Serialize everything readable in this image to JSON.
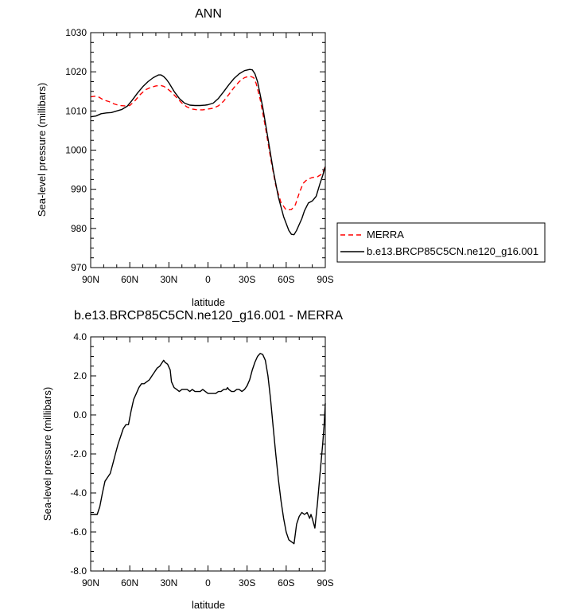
{
  "chart_data": [
    {
      "type": "line",
      "title": "ANN",
      "xlabel": "latitude",
      "ylabel": "Sea-level pressure (millibars)",
      "xlim": [
        90,
        -90
      ],
      "ylim": [
        970,
        1030
      ],
      "x_ticks": [
        90,
        60,
        30,
        0,
        -30,
        -60,
        -90
      ],
      "x_tick_labels": [
        "90N",
        "60N",
        "30N",
        "0",
        "30S",
        "60S",
        "90S"
      ],
      "y_ticks": [
        970,
        980,
        990,
        1000,
        1010,
        1020,
        1030
      ],
      "y_tick_labels": [
        "970",
        "980",
        "990",
        "1000",
        "1010",
        "1020",
        "1030"
      ],
      "legend_position": "right, outside plot",
      "series": [
        {
          "name": "MERRA",
          "color": "#ff0000",
          "dash": true,
          "x": [
            90,
            86,
            84,
            80,
            76,
            72,
            68,
            64,
            60,
            56,
            52,
            48,
            44,
            40,
            36,
            34,
            32,
            28,
            24,
            20,
            16,
            12,
            8,
            4,
            0,
            -4,
            -8,
            -12,
            -16,
            -20,
            -24,
            -28,
            -32,
            -35,
            -37,
            -40,
            -44,
            -48,
            -52,
            -56,
            -60,
            -64,
            -67,
            -70,
            -73,
            -76,
            -80,
            -84,
            -88,
            -90
          ],
          "y": [
            1013.6,
            1013.8,
            1013.6,
            1012.8,
            1012.4,
            1011.8,
            1011.4,
            1011.3,
            1011.4,
            1012.6,
            1014.2,
            1015.4,
            1016.0,
            1016.4,
            1016.5,
            1016.3,
            1015.9,
            1014.8,
            1013.4,
            1012.0,
            1011.0,
            1010.5,
            1010.3,
            1010.3,
            1010.5,
            1010.7,
            1011.3,
            1012.5,
            1014.2,
            1016.0,
            1017.5,
            1018.5,
            1018.9,
            1018.5,
            1017.0,
            1013.0,
            1006.0,
            998.0,
            991.0,
            986.6,
            984.7,
            984.8,
            986.0,
            989.0,
            991.5,
            992.5,
            993.0,
            993.2,
            994.0,
            996.0
          ]
        },
        {
          "name": "b.e13.BRCP85C5CN.ne120_g16.001",
          "color": "#000000",
          "dash": false,
          "x": [
            90,
            86,
            82,
            78,
            74,
            70,
            66,
            62,
            58,
            54,
            50,
            46,
            42,
            38,
            36,
            34,
            32,
            30,
            26,
            22,
            18,
            14,
            10,
            6,
            2,
            0,
            -4,
            -8,
            -12,
            -16,
            -20,
            -24,
            -28,
            -32,
            -34,
            -36,
            -38,
            -42,
            -46,
            -50,
            -54,
            -58,
            -62,
            -64,
            -66,
            -68,
            -70,
            -72,
            -74,
            -77,
            -80,
            -83,
            -86,
            -88,
            -90
          ],
          "y": [
            1008.5,
            1008.7,
            1009.3,
            1009.5,
            1009.6,
            1010.0,
            1010.4,
            1011.2,
            1012.8,
            1014.6,
            1016.2,
            1017.5,
            1018.5,
            1019.2,
            1019.2,
            1018.8,
            1018.1,
            1017.2,
            1015.0,
            1013.2,
            1012.0,
            1011.5,
            1011.4,
            1011.4,
            1011.5,
            1011.6,
            1012.0,
            1013.2,
            1014.9,
            1016.7,
            1018.3,
            1019.5,
            1020.3,
            1020.6,
            1020.5,
            1019.5,
            1017.5,
            1011.0,
            1003.0,
            995.0,
            988.0,
            983.0,
            979.5,
            978.5,
            978.4,
            979.5,
            981.0,
            982.5,
            984.5,
            986.5,
            987.0,
            988.2,
            991.5,
            993.5,
            995.8
          ]
        }
      ]
    },
    {
      "type": "line",
      "title": "b.e13.BRCP85C5CN.ne120_g16.001 - MERRA",
      "xlabel": "latitude",
      "ylabel": "Sea-level pressure (millibars)",
      "xlim": [
        90,
        -90
      ],
      "ylim": [
        -8,
        4
      ],
      "x_ticks": [
        90,
        60,
        30,
        0,
        -30,
        -60,
        -90
      ],
      "x_tick_labels": [
        "90N",
        "60N",
        "30N",
        "0",
        "30S",
        "60S",
        "90S"
      ],
      "y_ticks": [
        -8,
        -6,
        -4,
        -2,
        0,
        2,
        4
      ],
      "y_tick_labels": [
        "-8.0",
        "-6.0",
        "-4.0",
        "-2.0",
        "0.0",
        "2.0",
        "4.0"
      ],
      "series": [
        {
          "color": "#000000",
          "dash": false,
          "x": [
            90,
            87,
            85,
            83,
            81,
            79,
            77,
            75,
            73,
            71,
            69,
            67,
            65,
            63,
            61,
            59,
            57,
            55,
            53,
            51,
            49,
            47,
            45,
            43,
            41,
            39,
            37,
            35,
            34,
            33,
            31,
            29,
            28,
            26,
            24,
            22,
            20,
            18,
            16,
            14,
            12,
            10,
            8,
            6,
            4,
            2,
            0,
            -2,
            -4,
            -6,
            -8,
            -10,
            -12,
            -14,
            -15,
            -16,
            -18,
            -20,
            -22,
            -24,
            -26,
            -28,
            -30,
            -32,
            -34,
            -36,
            -38,
            -40,
            -42,
            -44,
            -46,
            -48,
            -50,
            -52,
            -54,
            -56,
            -58,
            -60,
            -62,
            -64,
            -66,
            -67,
            -68,
            -70,
            -72,
            -74,
            -76,
            -78,
            -79,
            -80,
            -82,
            -84,
            -86,
            -88,
            -89,
            -90
          ],
          "y": [
            -5.1,
            -5.1,
            -5.1,
            -4.7,
            -4.0,
            -3.4,
            -3.2,
            -3.0,
            -2.5,
            -2.0,
            -1.5,
            -1.1,
            -0.7,
            -0.5,
            -0.5,
            0.2,
            0.8,
            1.1,
            1.4,
            1.6,
            1.6,
            1.7,
            1.8,
            2.0,
            2.2,
            2.4,
            2.5,
            2.7,
            2.8,
            2.7,
            2.6,
            2.3,
            1.7,
            1.4,
            1.3,
            1.2,
            1.3,
            1.3,
            1.3,
            1.2,
            1.3,
            1.2,
            1.2,
            1.2,
            1.3,
            1.2,
            1.1,
            1.1,
            1.1,
            1.1,
            1.2,
            1.2,
            1.3,
            1.3,
            1.4,
            1.3,
            1.2,
            1.2,
            1.3,
            1.3,
            1.2,
            1.3,
            1.5,
            1.8,
            2.3,
            2.7,
            3.0,
            3.15,
            3.1,
            2.8,
            2.0,
            0.8,
            -0.6,
            -2.0,
            -3.3,
            -4.4,
            -5.3,
            -6.0,
            -6.4,
            -6.5,
            -6.6,
            -6.1,
            -5.6,
            -5.2,
            -5.0,
            -5.1,
            -5.0,
            -5.3,
            -5.1,
            -5.3,
            -5.8,
            -4.5,
            -3.0,
            -1.5,
            -0.6,
            0.6
          ]
        }
      ]
    }
  ]
}
